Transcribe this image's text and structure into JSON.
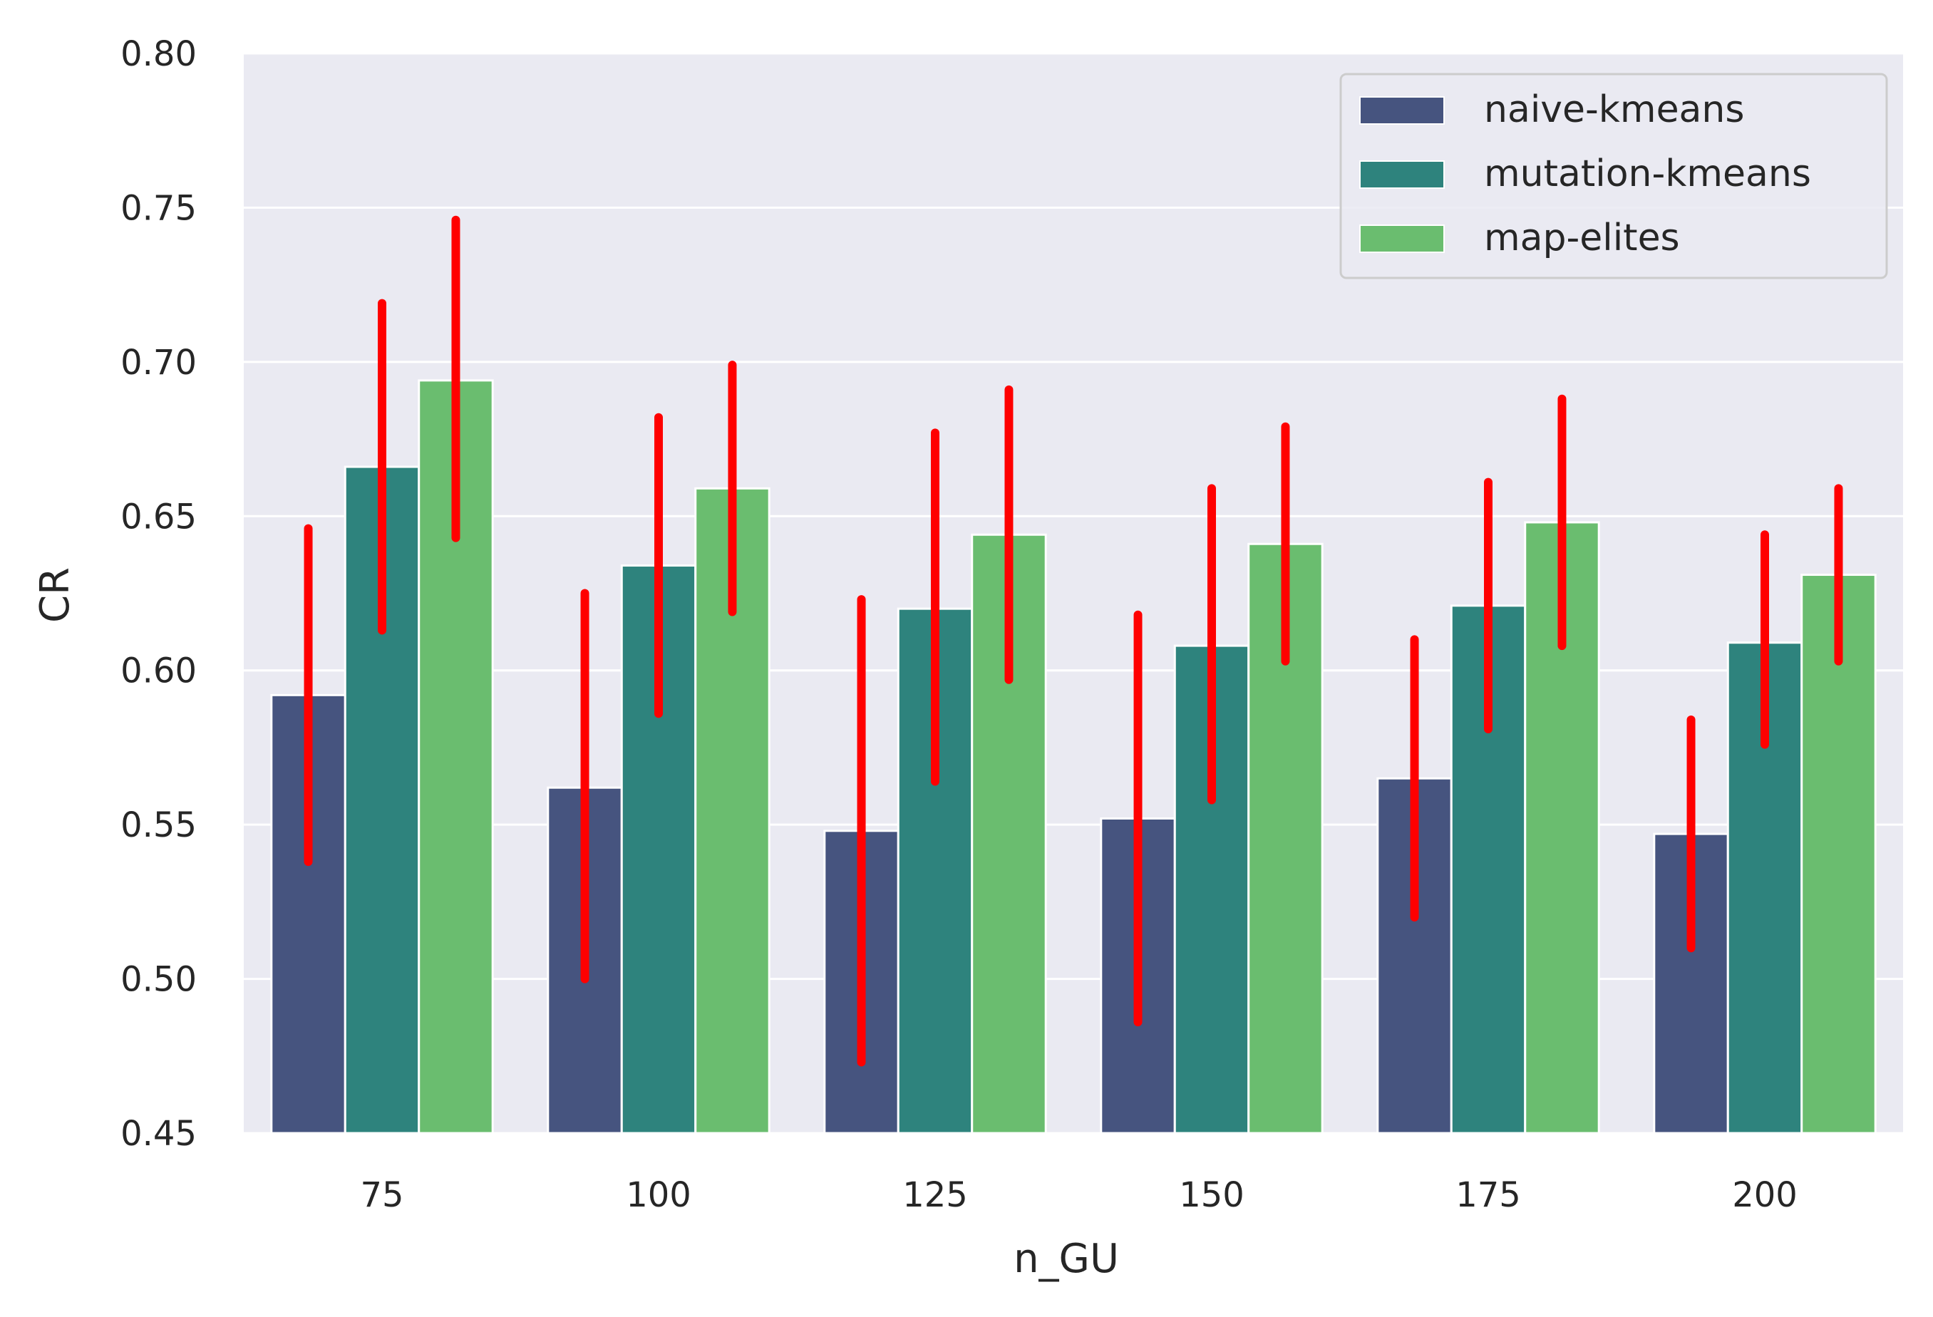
{
  "chart_data": {
    "type": "bar",
    "title": "",
    "xlabel": "n_GU",
    "ylabel": "CR",
    "ylim": [
      0.45,
      0.8
    ],
    "yticks": [
      "0.45",
      "0.50",
      "0.55",
      "0.60",
      "0.65",
      "0.70",
      "0.75",
      "0.80"
    ],
    "categories": [
      "75",
      "100",
      "125",
      "150",
      "175",
      "200"
    ],
    "grid": true,
    "legend_position": "top-right",
    "error_bar_color": "#ff0000",
    "series": [
      {
        "name": "naive-kmeans",
        "color": "#46547f",
        "values": [
          0.592,
          0.562,
          0.548,
          0.552,
          0.565,
          0.547
        ],
        "error_low": [
          0.538,
          0.5,
          0.473,
          0.486,
          0.52,
          0.51
        ],
        "error_high": [
          0.646,
          0.625,
          0.623,
          0.618,
          0.61,
          0.584
        ]
      },
      {
        "name": "mutation-kmeans",
        "color": "#2e837d",
        "values": [
          0.666,
          0.634,
          0.62,
          0.608,
          0.621,
          0.609
        ],
        "error_low": [
          0.613,
          0.586,
          0.564,
          0.558,
          0.581,
          0.576
        ],
        "error_high": [
          0.719,
          0.682,
          0.677,
          0.659,
          0.661,
          0.644
        ]
      },
      {
        "name": "map-elites",
        "color": "#6abd6f",
        "values": [
          0.694,
          0.659,
          0.644,
          0.641,
          0.648,
          0.631
        ],
        "error_low": [
          0.643,
          0.619,
          0.597,
          0.603,
          0.608,
          0.603
        ],
        "error_high": [
          0.746,
          0.699,
          0.691,
          0.679,
          0.688,
          0.659
        ]
      }
    ]
  }
}
